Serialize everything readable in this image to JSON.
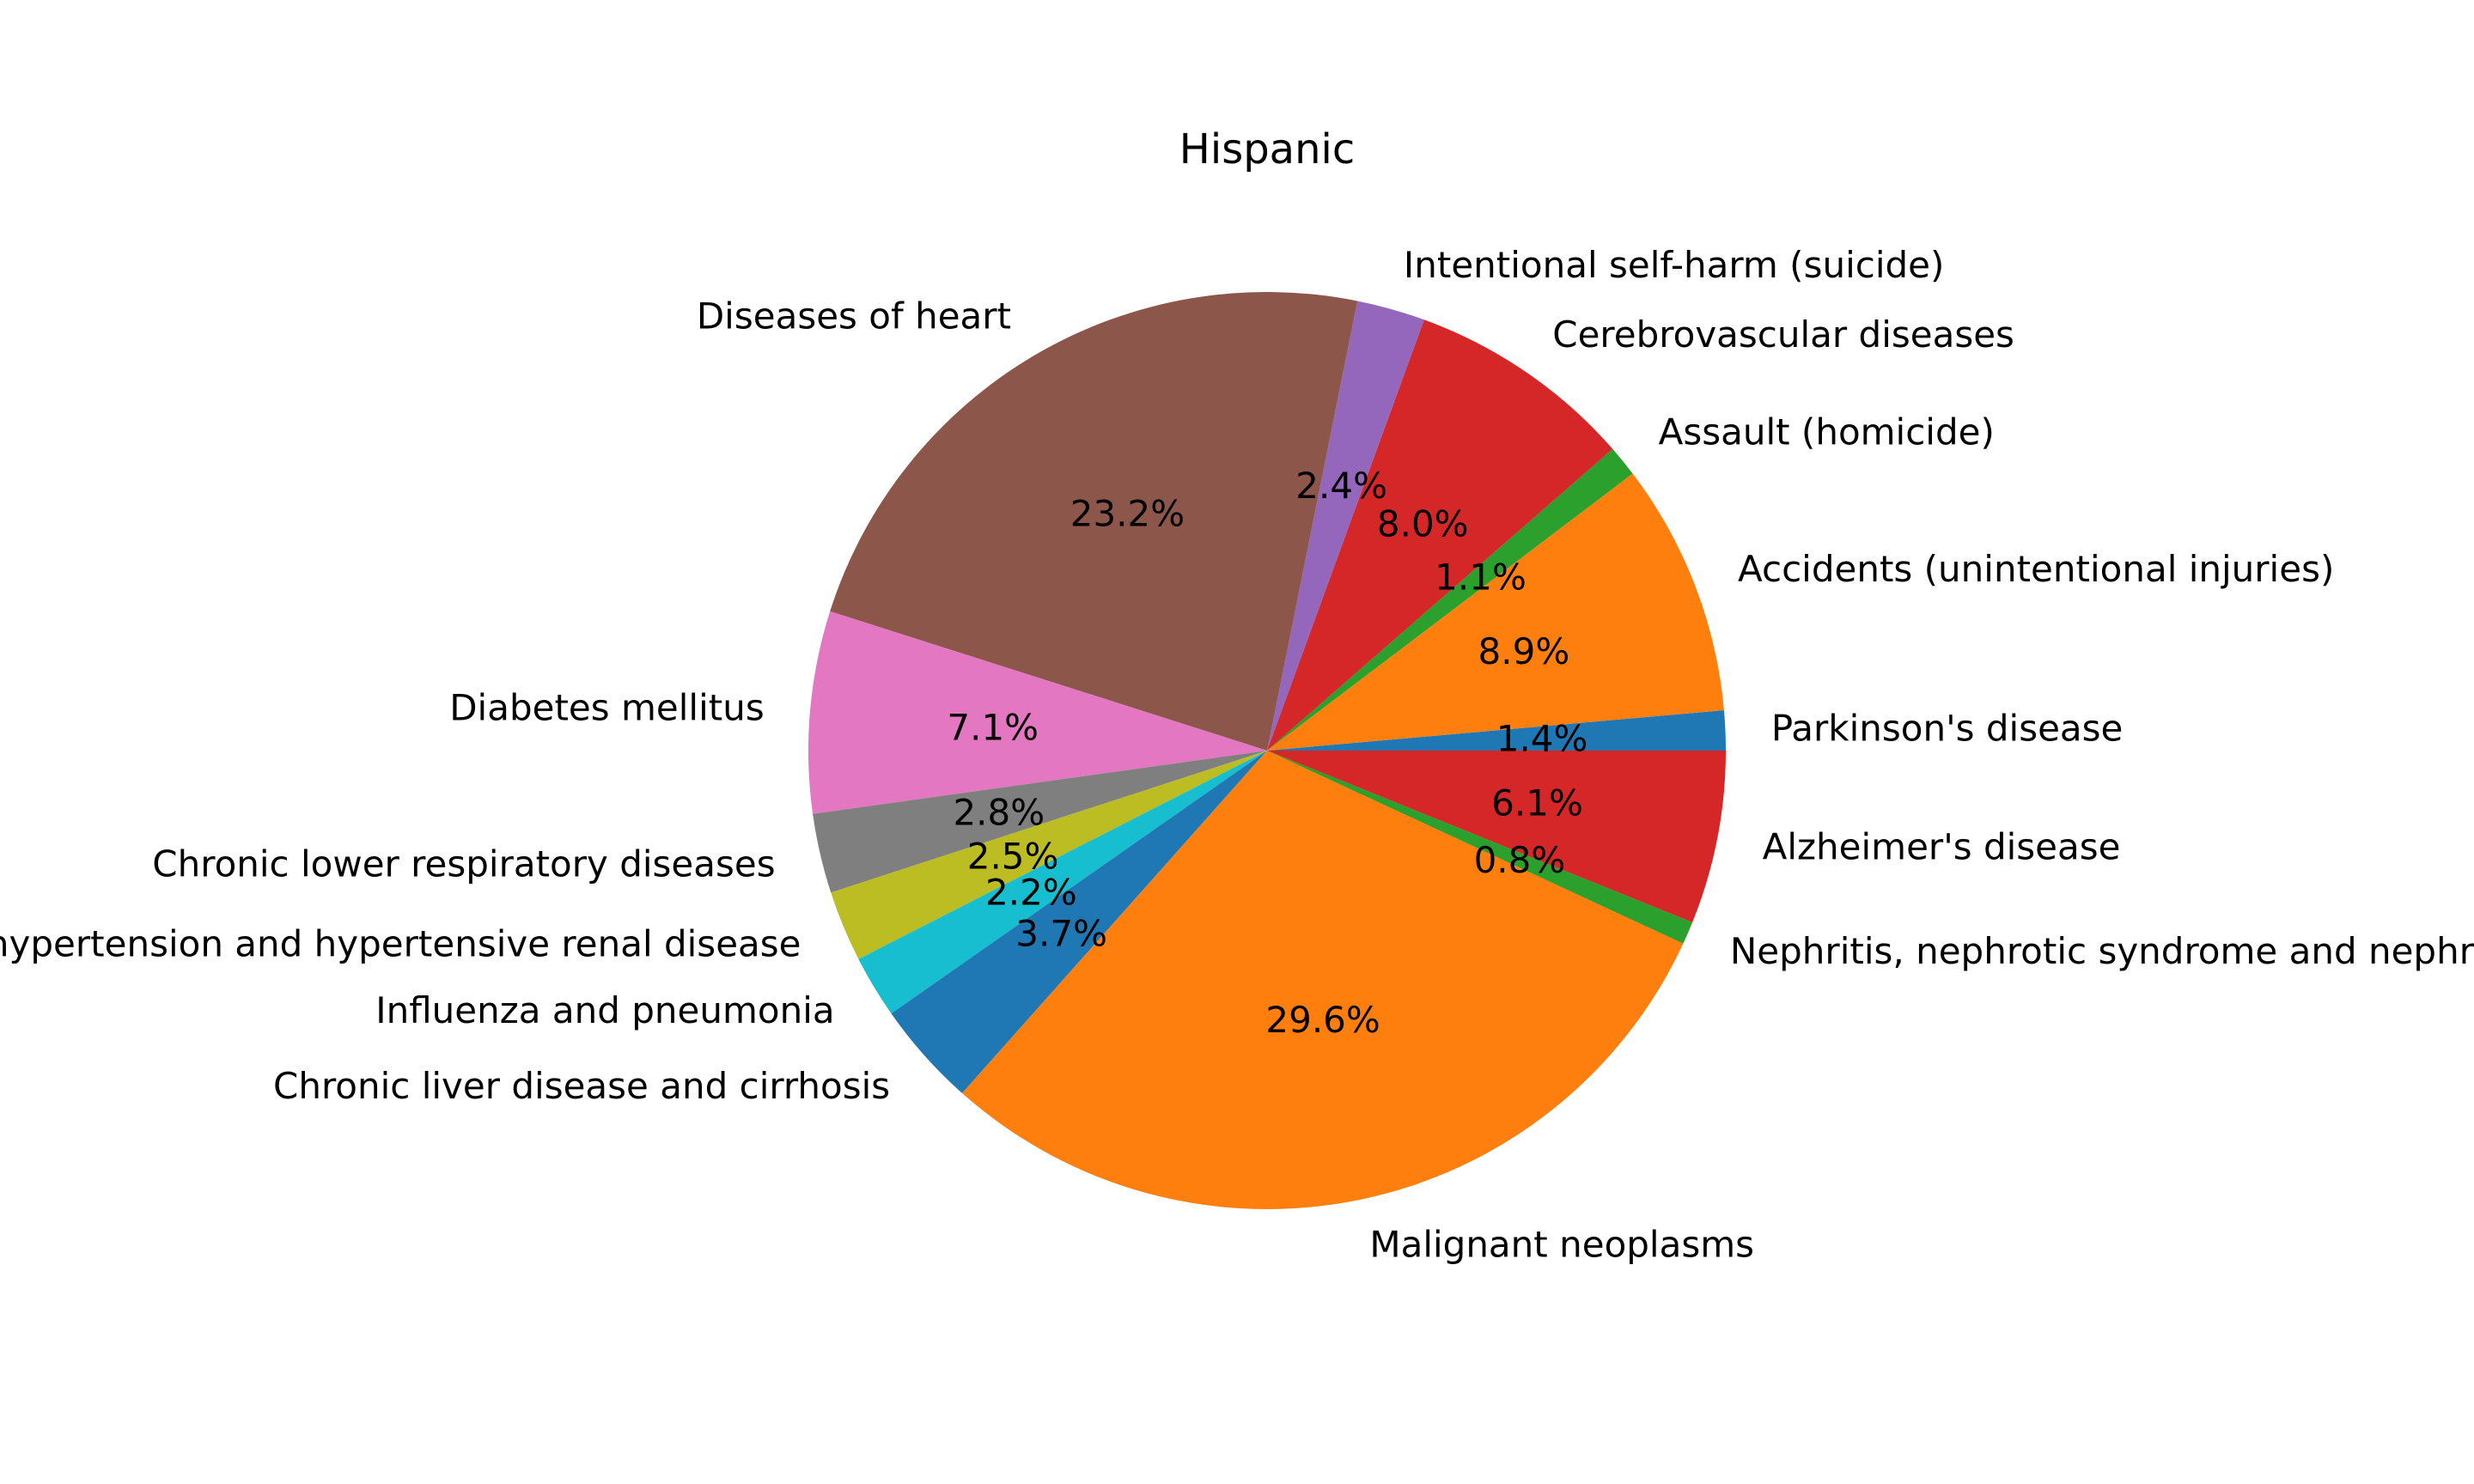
{
  "chart_data": {
    "type": "pie",
    "title": "Hispanic",
    "start_angle_deg": 0,
    "direction": "counterclockwise",
    "slices": [
      {
        "label": "Parkinson's disease",
        "value": 1.4,
        "pct_label": "1.4%",
        "color": "#1f77b4"
      },
      {
        "label": "Accidents (unintentional injuries)",
        "value": 8.9,
        "pct_label": "8.9%",
        "color": "#ff7f0e"
      },
      {
        "label": "Assault (homicide)",
        "value": 1.1,
        "pct_label": "1.1%",
        "color": "#2ca02c"
      },
      {
        "label": "Cerebrovascular diseases",
        "value": 8.0,
        "pct_label": "8.0%",
        "color": "#d62728"
      },
      {
        "label": "Intentional self-harm (suicide)",
        "value": 2.4,
        "pct_label": "2.4%",
        "color": "#9467bd"
      },
      {
        "label": "Diseases of heart",
        "value": 23.2,
        "pct_label": "23.2%",
        "color": "#8c564b"
      },
      {
        "label": "Diabetes mellitus",
        "value": 7.1,
        "pct_label": "7.1%",
        "color": "#e377c2"
      },
      {
        "label": "Chronic lower respiratory diseases",
        "value": 2.8,
        "pct_label": "2.8%",
        "color": "#7f7f7f"
      },
      {
        "label": "Essential hypertension and hypertensive renal disease",
        "value": 2.5,
        "pct_label": "2.5%",
        "color": "#bcbd22"
      },
      {
        "label": "Influenza and pneumonia",
        "value": 2.2,
        "pct_label": "2.2%",
        "color": "#17becf"
      },
      {
        "label": "Chronic liver disease and cirrhosis",
        "value": 3.7,
        "pct_label": "3.7%",
        "color": "#1f77b4"
      },
      {
        "label": "Malignant neoplasms",
        "value": 29.6,
        "pct_label": "29.6%",
        "color": "#ff7f0e"
      },
      {
        "label": "Nephritis, nephrotic syndrome and nephrosis",
        "value": 0.8,
        "pct_label": "0.8%",
        "color": "#2ca02c"
      },
      {
        "label": "Alzheimer's disease",
        "value": 6.1,
        "pct_label": "6.1%",
        "color": "#d62728"
      }
    ]
  }
}
